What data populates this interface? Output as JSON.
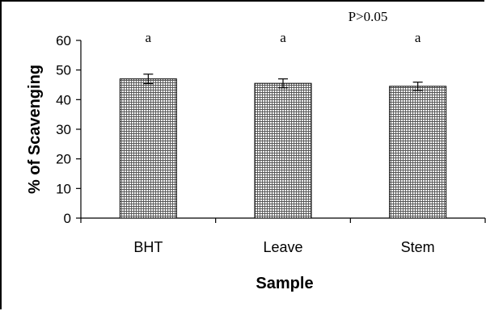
{
  "chart_data": {
    "type": "bar",
    "categories": [
      "BHT",
      "Leave",
      "Stem"
    ],
    "values": [
      47,
      45.5,
      44.5
    ],
    "error": [
      1.6,
      1.5,
      1.4
    ],
    "significance_letters": [
      "a",
      "a",
      "a"
    ],
    "annotation": "P>0.05",
    "xlabel": "Sample",
    "ylabel": "% of Scavenging",
    "ylim": [
      0,
      60
    ],
    "yticks": [
      0,
      10,
      20,
      30,
      40,
      50,
      60
    ],
    "grid": false,
    "bar_pattern": "cross-hatch"
  }
}
